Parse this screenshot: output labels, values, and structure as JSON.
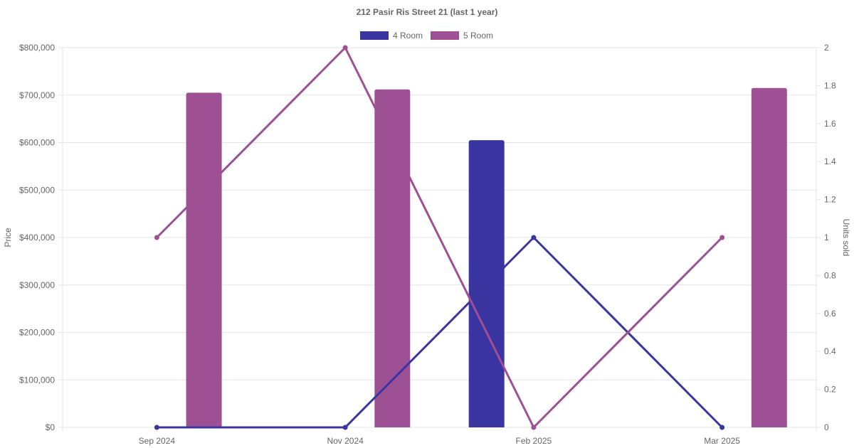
{
  "chart_data": {
    "type": "bar",
    "title": "212 Pasir Ris Street 21 (last 1 year)",
    "categories": [
      "Sep 2024",
      "Nov 2024",
      "Feb 2025",
      "Mar 2025"
    ],
    "y_left": {
      "label": "Price",
      "min": 0,
      "max": 800000,
      "ticks": [
        "$0",
        "$100,000",
        "$200,000",
        "$300,000",
        "$400,000",
        "$500,000",
        "$600,000",
        "$700,000",
        "$800,000"
      ]
    },
    "y_right": {
      "label": "Units sold",
      "min": 0,
      "max": 2,
      "ticks": [
        "0",
        "0.2",
        "0.4",
        "0.6",
        "0.8",
        "1",
        "1.2",
        "1.4",
        "1.6",
        "1.8",
        "2"
      ]
    },
    "grid": true,
    "legend_position": "top",
    "series": [
      {
        "name": "4 Room",
        "color": "#3a35a0",
        "price": [
          null,
          null,
          605000,
          null
        ],
        "units_sold": [
          0,
          0,
          1,
          0
        ]
      },
      {
        "name": "5 Room",
        "color": "#9e5094",
        "price": [
          705000,
          712000,
          null,
          715000
        ],
        "units_sold": [
          1,
          2,
          0,
          1
        ]
      }
    ]
  }
}
